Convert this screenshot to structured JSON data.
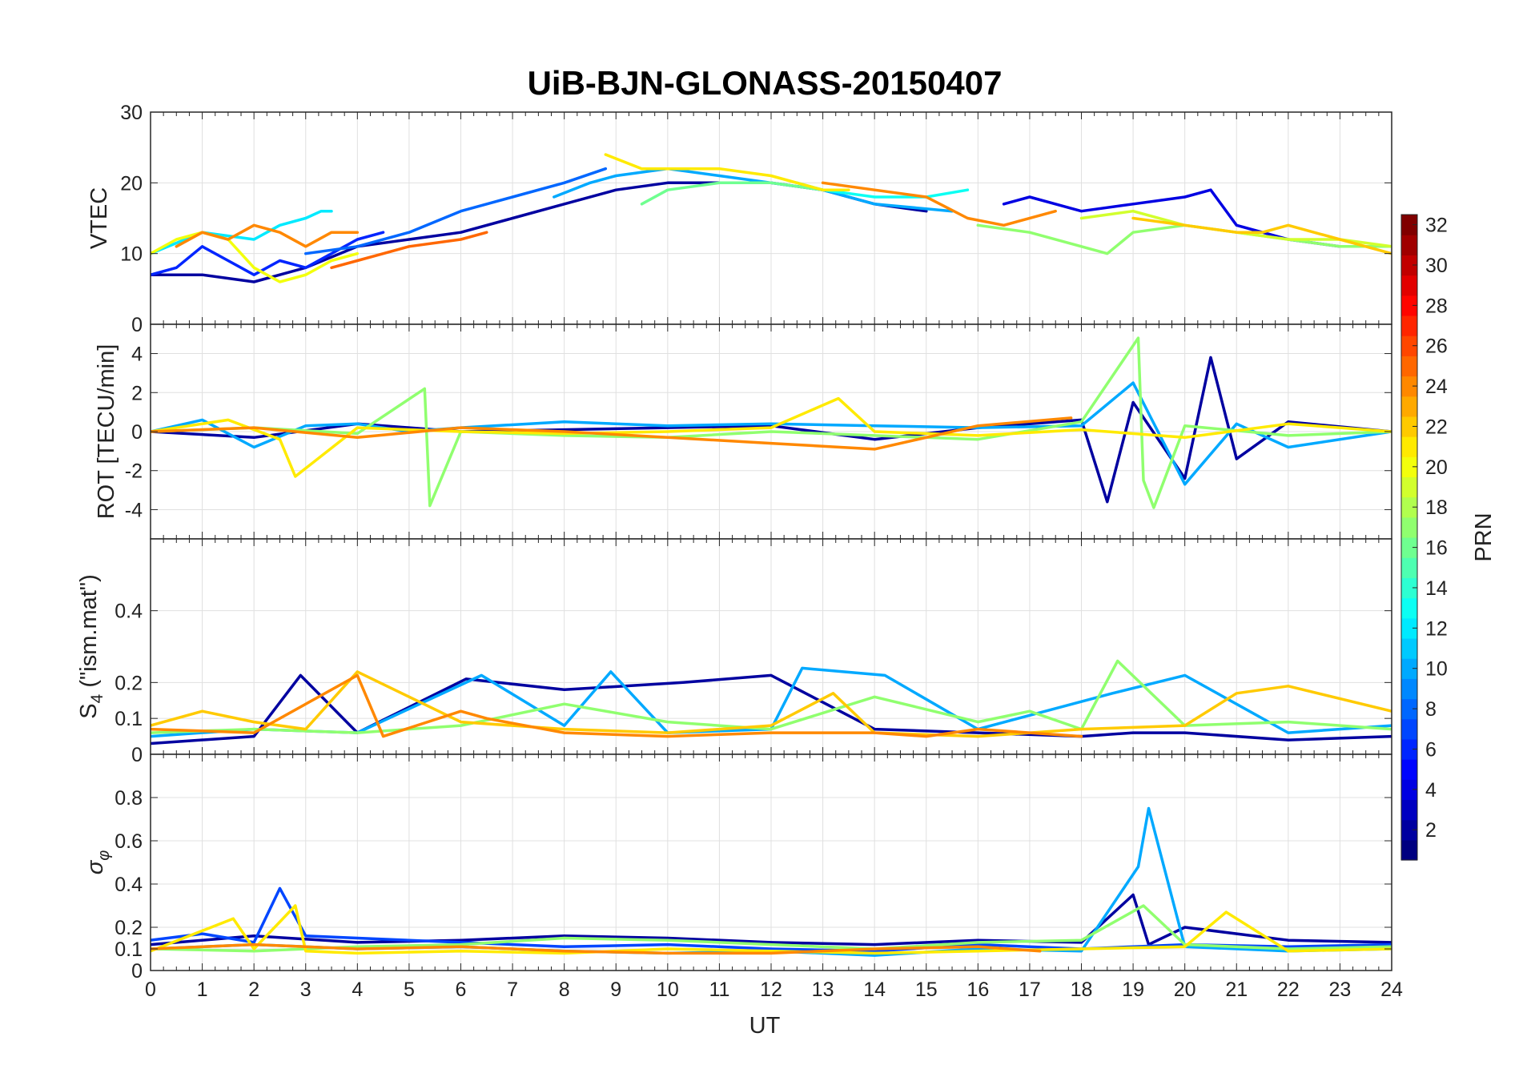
{
  "chart_data": {
    "type": "line",
    "title": "UiB-BJN-GLONASS-20150407",
    "xlabel": "UT",
    "xlim": [
      0,
      24
    ],
    "xticks": [
      0,
      1,
      2,
      3,
      4,
      5,
      6,
      7,
      8,
      9,
      10,
      11,
      12,
      13,
      14,
      15,
      16,
      17,
      18,
      19,
      20,
      21,
      22,
      23,
      24
    ],
    "grid": true,
    "panels": [
      {
        "ylabel": "VTEC",
        "ylim": [
          0,
          30
        ],
        "yticks": [
          0,
          10,
          20,
          30
        ],
        "series": [
          {
            "prn": 2,
            "x": [
              0,
              1,
              2,
              3,
              4,
              5,
              6,
              7,
              8,
              9,
              10,
              11,
              12,
              13,
              14,
              15
            ],
            "y": [
              7,
              7,
              6,
              8,
              11,
              12,
              13,
              15,
              17,
              19,
              20,
              20,
              20,
              19,
              17,
              16
            ]
          },
          {
            "prn": 6,
            "x": [
              0,
              0.5,
              1,
              1.5,
              2,
              2.5,
              3,
              3.5,
              4,
              4.5
            ],
            "y": [
              7,
              8,
              11,
              9,
              7,
              9,
              8,
              10,
              12,
              13
            ]
          },
          {
            "prn": 8,
            "x": [
              3,
              4,
              5,
              6,
              7,
              8,
              8.8
            ],
            "y": [
              10,
              11,
              13,
              16,
              18,
              20,
              22
            ]
          },
          {
            "prn": 4,
            "x": [
              16.5,
              17,
              18,
              19,
              20,
              20.5,
              21,
              22,
              23,
              24
            ],
            "y": [
              17,
              18,
              16,
              17,
              18,
              19,
              14,
              12,
              11,
              11
            ]
          },
          {
            "prn": 10,
            "x": [
              7.8,
              8.5,
              9,
              10,
              11,
              12,
              13,
              14,
              15.5
            ],
            "y": [
              18,
              20,
              21,
              22,
              21,
              20,
              19,
              17,
              16
            ]
          },
          {
            "prn": 12,
            "x": [
              0,
              1,
              2,
              2.5,
              3,
              3.3,
              3.5
            ],
            "y": [
              10,
              13,
              12,
              14,
              15,
              16,
              16
            ]
          },
          {
            "prn": 13,
            "x": [
              12.5,
              13,
              14,
              15,
              15.8
            ],
            "y": [
              20,
              19,
              18,
              18,
              19
            ]
          },
          {
            "prn": 16,
            "x": [
              9.5,
              10,
              11,
              12,
              13
            ],
            "y": [
              17,
              19,
              20,
              20,
              19
            ]
          },
          {
            "prn": 17,
            "x": [
              16,
              17,
              18,
              18.5,
              19,
              20,
              21,
              22,
              23,
              24
            ],
            "y": [
              14,
              13,
              11,
              10,
              13,
              14,
              13,
              12,
              11,
              11
            ]
          },
          {
            "prn": 19,
            "x": [
              18,
              19,
              20,
              21,
              22,
              23,
              24
            ],
            "y": [
              15,
              16,
              14,
              13,
              12,
              12,
              11
            ]
          },
          {
            "prn": 20,
            "x": [
              0,
              0.5,
              1,
              1.5,
              2,
              2.5,
              3,
              3.5,
              4
            ],
            "y": [
              10,
              12,
              13,
              12,
              8,
              6,
              7,
              9,
              10
            ]
          },
          {
            "prn": 21,
            "x": [
              8.8,
              9.5,
              10,
              11,
              12,
              13,
              13.5
            ],
            "y": [
              24,
              22,
              22,
              22,
              21,
              19,
              19
            ]
          },
          {
            "prn": 22,
            "x": [
              19,
              20,
              21,
              21.5,
              22,
              23,
              24
            ],
            "y": [
              15,
              14,
              13,
              13,
              14,
              12,
              10
            ]
          },
          {
            "prn": 24,
            "x": [
              0.5,
              1,
              1.5,
              2,
              2.5,
              3,
              3.5,
              4
            ],
            "y": [
              11,
              13,
              12,
              14,
              13,
              11,
              13,
              13
            ]
          },
          {
            "prn": 25,
            "x": [
              3.5,
              4,
              4.5,
              5,
              6,
              6.5
            ],
            "y": [
              8,
              9,
              10,
              11,
              12,
              13
            ]
          },
          {
            "prn": 24,
            "x": [
              13,
              14,
              15,
              15.8,
              16.5,
              17.5
            ],
            "y": [
              20,
              19,
              18,
              15,
              14,
              16
            ]
          }
        ]
      },
      {
        "ylabel": "ROT [TECU/min]",
        "ylim": [
          -5.5,
          5.5
        ],
        "yticks": [
          -4,
          -2,
          0,
          2,
          4
        ],
        "series": [
          {
            "prn": 2,
            "x": [
              0,
              2,
              4,
              6,
              8,
              10,
              12,
              14,
              16,
              18,
              18.5,
              19,
              20,
              20.5,
              21,
              22,
              24
            ],
            "y": [
              0,
              -0.3,
              0.4,
              0,
              0.1,
              0.2,
              0.3,
              -0.4,
              0.2,
              0.6,
              -3.6,
              1.5,
              -2.4,
              3.8,
              -1.4,
              0.5,
              0
            ]
          },
          {
            "prn": 10,
            "x": [
              0,
              1,
              2,
              3,
              4,
              5,
              6,
              8,
              10,
              12,
              14,
              16,
              18,
              19,
              20,
              21,
              22,
              24
            ],
            "y": [
              0,
              0.6,
              -0.8,
              0.3,
              0.4,
              0,
              0.2,
              0.5,
              0.3,
              0.4,
              0.3,
              0.2,
              0.3,
              2.5,
              -2.7,
              0.4,
              -0.8,
              0
            ]
          },
          {
            "prn": 17,
            "x": [
              0,
              2,
              4,
              5.3,
              5.4,
              6,
              8,
              10,
              12,
              14,
              16,
              18,
              19.1,
              19.2,
              19.4,
              20,
              22,
              24
            ],
            "y": [
              0,
              0.2,
              -0.1,
              2.2,
              -3.8,
              0,
              -0.2,
              -0.3,
              0,
              -0.2,
              -0.4,
              0.5,
              4.8,
              -2.5,
              -3.9,
              0.3,
              -0.2,
              0
            ]
          },
          {
            "prn": 21,
            "x": [
              0,
              1.5,
              2.5,
              2.8,
              4,
              6,
              8,
              10,
              12,
              13.3,
              14,
              16,
              18,
              20,
              22,
              24
            ],
            "y": [
              0,
              0.6,
              -0.4,
              -2.3,
              0.2,
              0,
              -0.1,
              0,
              0.2,
              1.7,
              0,
              -0.2,
              0.1,
              -0.3,
              0.4,
              0
            ]
          },
          {
            "prn": 24,
            "x": [
              0,
              2,
              4,
              6,
              8,
              10,
              12,
              14,
              16,
              17.8
            ],
            "y": [
              0,
              0.2,
              -0.3,
              0.2,
              0,
              -0.3,
              -0.6,
              -0.9,
              0.3,
              0.7
            ]
          }
        ]
      },
      {
        "ylabel": "S4 (\"ism.mat\")",
        "ylim": [
          0,
          0.6
        ],
        "yticks": [
          0,
          0.1,
          0.2,
          0.4
        ],
        "series": [
          {
            "prn": 2,
            "x": [
              0,
              2,
              2.9,
              4,
              6.1,
              8,
              10.3,
              12,
              14,
              16,
              18,
              19,
              20,
              22,
              24
            ],
            "y": [
              0.03,
              0.05,
              0.22,
              0.06,
              0.21,
              0.18,
              0.2,
              0.22,
              0.07,
              0.06,
              0.05,
              0.06,
              0.06,
              0.04,
              0.05
            ]
          },
          {
            "prn": 10,
            "x": [
              0,
              2,
              4,
              6.4,
              8,
              8.9,
              10,
              12,
              12.6,
              14.2,
              16,
              18.6,
              20,
              22,
              24
            ],
            "y": [
              0.05,
              0.07,
              0.06,
              0.22,
              0.08,
              0.23,
              0.06,
              0.07,
              0.24,
              0.22,
              0.07,
              0.17,
              0.22,
              0.06,
              0.08
            ]
          },
          {
            "prn": 17,
            "x": [
              0,
              2,
              4,
              6,
              8,
              10,
              12,
              14,
              16,
              17,
              18,
              18.7,
              20,
              22,
              24
            ],
            "y": [
              0.06,
              0.07,
              0.06,
              0.08,
              0.14,
              0.09,
              0.07,
              0.16,
              0.09,
              0.12,
              0.07,
              0.26,
              0.08,
              0.09,
              0.07
            ]
          },
          {
            "prn": 22,
            "x": [
              0,
              1,
              2,
              3,
              4,
              6,
              8,
              10,
              12,
              13.2,
              14,
              16,
              18,
              20,
              21,
              22,
              24
            ],
            "y": [
              0.08,
              0.12,
              0.09,
              0.07,
              0.23,
              0.09,
              0.07,
              0.06,
              0.08,
              0.17,
              0.06,
              0.05,
              0.07,
              0.08,
              0.17,
              0.19,
              0.12
            ]
          },
          {
            "prn": 24,
            "x": [
              0,
              2,
              4,
              4.5,
              6,
              6.5,
              8,
              10,
              12,
              14,
              15,
              16,
              17,
              18
            ],
            "y": [
              0.07,
              0.06,
              0.22,
              0.05,
              0.12,
              0.1,
              0.06,
              0.05,
              0.06,
              0.06,
              0.05,
              0.07,
              0.06,
              0.05
            ]
          }
        ]
      },
      {
        "ylabel": "σφ",
        "ylim": [
          0,
          1
        ],
        "yticks": [
          0,
          0.1,
          0.2,
          0.4,
          0.6,
          0.8
        ],
        "series": [
          {
            "prn": 2,
            "x": [
              0,
              2,
              4,
              6,
              8,
              10,
              12,
              14,
              16,
              18,
              19,
              19.3,
              20,
              22,
              24
            ],
            "y": [
              0.12,
              0.16,
              0.13,
              0.14,
              0.16,
              0.15,
              0.13,
              0.12,
              0.14,
              0.13,
              0.35,
              0.12,
              0.2,
              0.14,
              0.13
            ]
          },
          {
            "prn": 7,
            "x": [
              0,
              1,
              2,
              2.5,
              3,
              4,
              6,
              8,
              10,
              12,
              14,
              16,
              18,
              20,
              22,
              24
            ],
            "y": [
              0.14,
              0.17,
              0.13,
              0.38,
              0.16,
              0.15,
              0.13,
              0.11,
              0.12,
              0.1,
              0.09,
              0.12,
              0.1,
              0.12,
              0.11,
              0.12
            ]
          },
          {
            "prn": 10,
            "x": [
              0,
              2,
              4,
              6,
              8,
              10,
              12,
              14,
              16,
              18,
              19.1,
              19.3,
              20,
              22,
              24
            ],
            "y": [
              0.1,
              0.12,
              0.1,
              0.11,
              0.09,
              0.08,
              0.09,
              0.07,
              0.1,
              0.09,
              0.48,
              0.75,
              0.11,
              0.09,
              0.1
            ]
          },
          {
            "prn": 17,
            "x": [
              0,
              2,
              4,
              6,
              8,
              10,
              12,
              14,
              16,
              18,
              19.2,
              20,
              22,
              24
            ],
            "y": [
              0.1,
              0.09,
              0.11,
              0.12,
              0.15,
              0.14,
              0.12,
              0.1,
              0.13,
              0.14,
              0.3,
              0.12,
              0.1,
              0.11
            ]
          },
          {
            "prn": 21,
            "x": [
              0,
              1.6,
              2,
              2.8,
              3,
              4,
              6,
              8,
              10,
              12,
              14,
              16,
              18,
              20,
              20.8,
              22,
              24
            ],
            "y": [
              0.09,
              0.24,
              0.1,
              0.3,
              0.09,
              0.08,
              0.09,
              0.08,
              0.1,
              0.09,
              0.08,
              0.09,
              0.1,
              0.11,
              0.27,
              0.09,
              0.1
            ]
          },
          {
            "prn": 24,
            "x": [
              0,
              2,
              4,
              6,
              8,
              10,
              12,
              14,
              16,
              17.2
            ],
            "y": [
              0.1,
              0.12,
              0.1,
              0.11,
              0.09,
              0.08,
              0.08,
              0.1,
              0.11,
              0.09
            ]
          }
        ]
      }
    ],
    "colorbar": {
      "label": "PRN",
      "min": 1,
      "max": 32,
      "ticks": [
        2,
        4,
        6,
        8,
        10,
        12,
        14,
        16,
        18,
        20,
        22,
        24,
        26,
        28,
        30,
        32
      ],
      "colormap": "jet"
    }
  }
}
